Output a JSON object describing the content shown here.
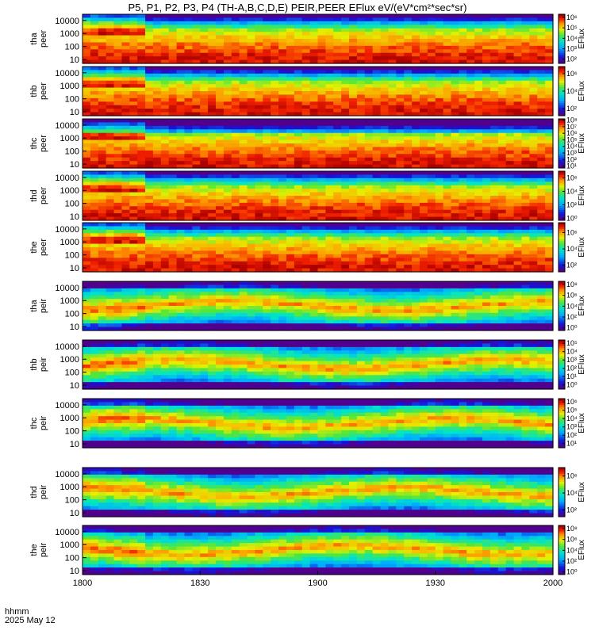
{
  "chart_data": {
    "type": "heatmap",
    "title": "P5, P1, P2, P3, P4 (TH-A,B,C,D,E) PEIR,PEER EFlux eV/(eV*cm²*sec*sr)",
    "x_ticks": [
      "1800",
      "1830",
      "1900",
      "1930",
      "2000"
    ],
    "x_ticks_minutes_from_start": [
      0,
      30,
      60,
      90,
      120
    ],
    "x_label_line1": "hhmm",
    "x_label_line2": "2025 May 12",
    "y_scale": "log",
    "y_range": [
      5,
      30000
    ],
    "y_ticks": [
      "10000",
      "1000",
      "100",
      "10"
    ],
    "y_tick_values": [
      10000,
      1000,
      100,
      10
    ],
    "colorbar_label": "EFlux",
    "colormap": "rainbow",
    "panels": [
      {
        "probe": "tha",
        "product": "peer",
        "cb_ticks": [
          "10⁶",
          "10⁵",
          "10⁴",
          "10³",
          "10²"
        ],
        "cb_exponents": [
          6,
          5,
          4,
          3,
          2
        ],
        "cb_range": [
          1.6,
          6.3
        ]
      },
      {
        "probe": "thb",
        "product": "peer",
        "cb_ticks": [
          "10⁶",
          "10⁴",
          "10²"
        ],
        "cb_exponents": [
          6,
          4,
          2
        ],
        "cb_range": [
          1.2,
          6.8
        ]
      },
      {
        "probe": "thc",
        "product": "peer",
        "cb_ticks": [
          "10⁸",
          "10⁷",
          "10⁶",
          "10⁵",
          "10⁴",
          "10³",
          "10²",
          "10¹"
        ],
        "cb_exponents": [
          8,
          7,
          6,
          5,
          4,
          3,
          2,
          1
        ],
        "cb_range": [
          0.7,
          8.2
        ]
      },
      {
        "probe": "thd",
        "product": "peer",
        "cb_ticks": [
          "10⁶",
          "10⁴",
          "10²",
          "10⁰"
        ],
        "cb_exponents": [
          6,
          4,
          2,
          0
        ],
        "cb_range": [
          -0.3,
          7.0
        ]
      },
      {
        "probe": "the",
        "product": "peer",
        "cb_ticks": [
          "10⁶",
          "10⁴",
          "10²"
        ],
        "cb_exponents": [
          6,
          4,
          2
        ],
        "cb_range": [
          1.2,
          7.2
        ]
      },
      {
        "probe": "tha",
        "product": "peir",
        "cb_ticks": [
          "10⁸",
          "10⁶",
          "10⁴",
          "10²",
          "10⁰"
        ],
        "cb_exponents": [
          8,
          6,
          4,
          2,
          0
        ],
        "cb_range": [
          -0.5,
          8.6
        ]
      },
      {
        "probe": "thb",
        "product": "peir",
        "cb_ticks": [
          "10⁵",
          "10⁴",
          "10³",
          "10²",
          "10¹",
          "10⁰"
        ],
        "cb_exponents": [
          5,
          4,
          3,
          2,
          1,
          0
        ],
        "cb_range": [
          -0.5,
          5.4
        ]
      },
      {
        "probe": "thc",
        "product": "peir",
        "cb_ticks": [
          "10⁶",
          "10⁵",
          "10⁴",
          "10³",
          "10²",
          "10¹"
        ],
        "cb_exponents": [
          6,
          5,
          4,
          3,
          2,
          1
        ],
        "cb_range": [
          0.5,
          6.4
        ]
      },
      {
        "probe": "thd",
        "product": "peir",
        "cb_ticks": [
          "10⁶",
          "10⁴",
          "10²"
        ],
        "cb_exponents": [
          6,
          4,
          2
        ],
        "cb_range": [
          1.2,
          7.0
        ]
      },
      {
        "probe": "the",
        "product": "peir",
        "cb_ticks": [
          "10⁸",
          "10⁶",
          "10⁴",
          "10²",
          "10⁰"
        ],
        "cb_exponents": [
          8,
          6,
          4,
          2,
          0
        ],
        "cb_range": [
          -0.5,
          8.6
        ]
      }
    ]
  }
}
